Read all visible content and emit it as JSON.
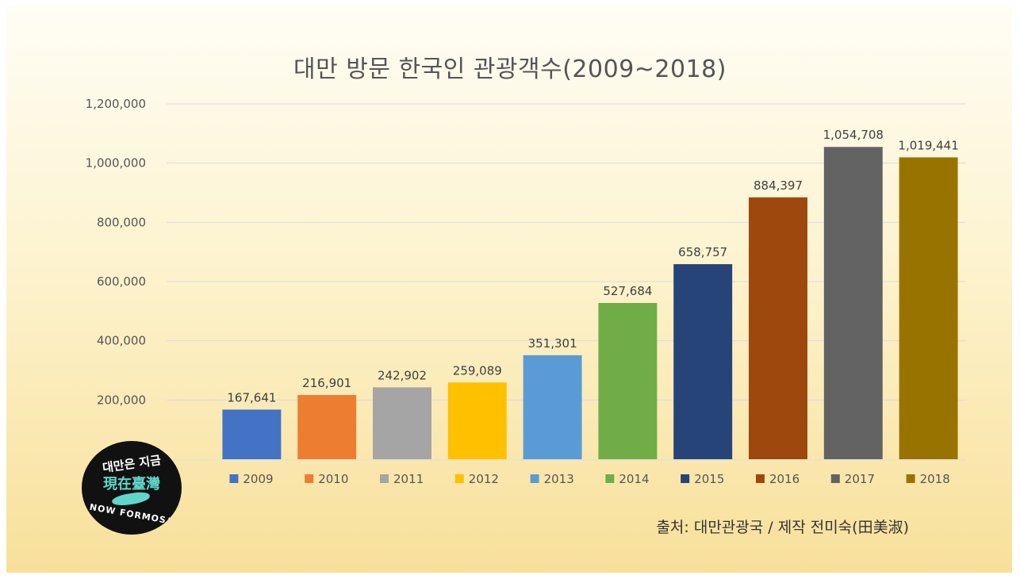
{
  "chart_data": {
    "type": "bar",
    "title": "대만 방문 한국인 관광객수(2009~2018)",
    "categories": [
      "2009",
      "2010",
      "2011",
      "2012",
      "2013",
      "2014",
      "2015",
      "2016",
      "2017",
      "2018"
    ],
    "values": [
      167641,
      216901,
      242902,
      259089,
      351301,
      527684,
      658757,
      884397,
      1054708,
      1019441
    ],
    "value_labels": [
      "167,641",
      "216,901",
      "242,902",
      "259,089",
      "351,301",
      "527,684",
      "658,757",
      "884,397",
      "1,054,708",
      "1,019,441"
    ],
    "colors": [
      "#4472c4",
      "#ed7d31",
      "#a5a5a5",
      "#ffc000",
      "#5b9bd5",
      "#70ad47",
      "#264478",
      "#9e480e",
      "#636363",
      "#997300"
    ],
    "ylim": [
      0,
      1200000
    ],
    "yticks": [
      200000,
      400000,
      600000,
      800000,
      1000000,
      1200000
    ],
    "ytick_labels": [
      "200,000",
      "400,000",
      "600,000",
      "800,000",
      "1,000,000",
      "1,200,000"
    ],
    "xlabel": "",
    "ylabel": "",
    "legend_position": "bottom",
    "grid": true
  },
  "source_note": "출처: 대만관광국 / 제작 전미숙(田美淑)",
  "logo": {
    "line1": "대만은 지금",
    "line2": "現在臺灣",
    "line3": "NOW FORMOSA"
  }
}
